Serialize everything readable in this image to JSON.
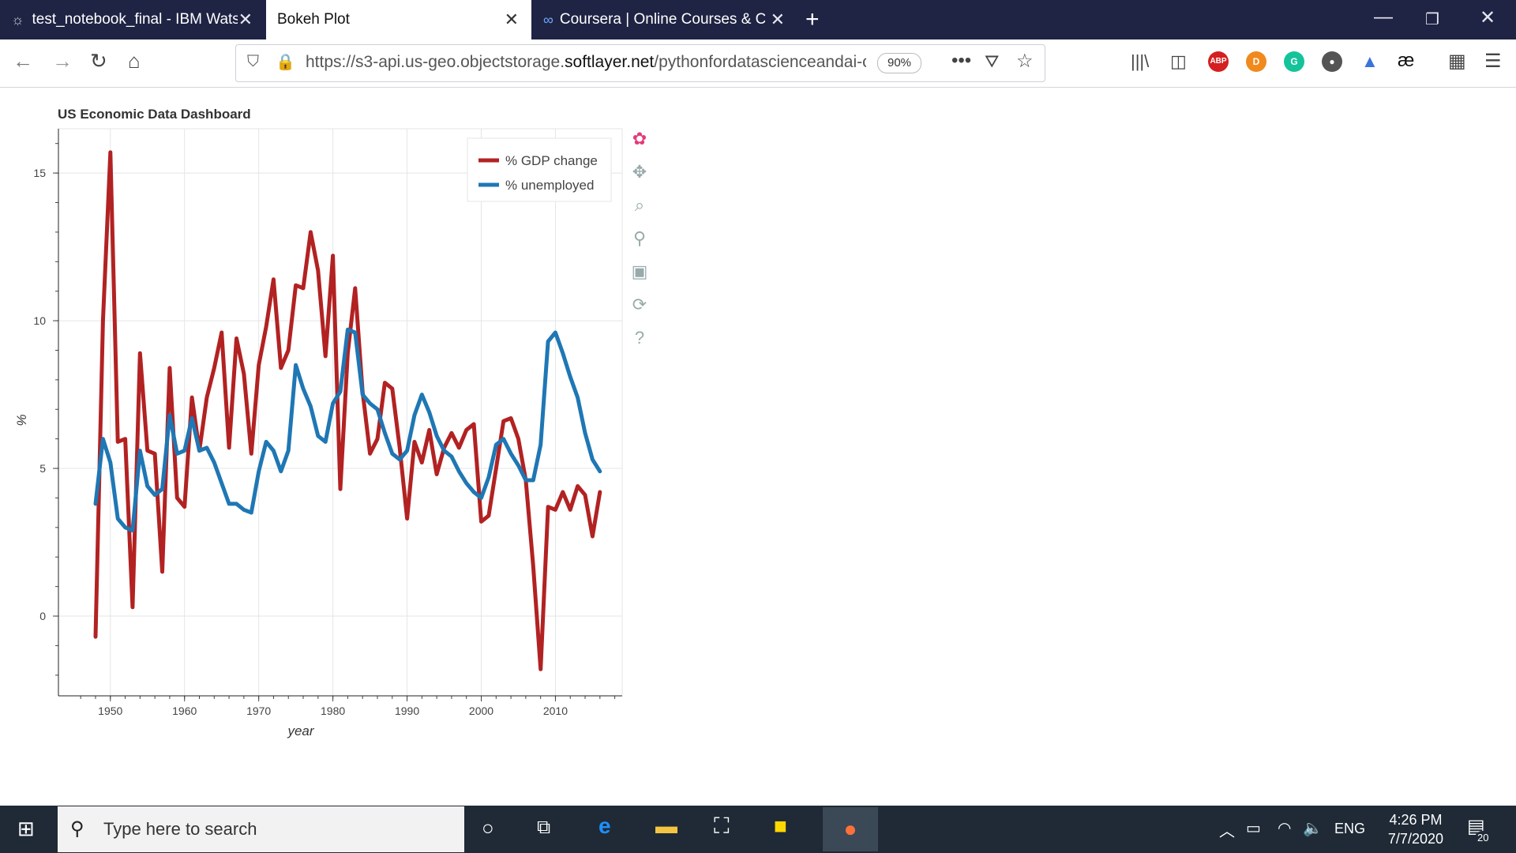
{
  "browser": {
    "tabs": [
      {
        "label": "test_notebook_final - IBM Wats",
        "active": false
      },
      {
        "label": "Bokeh Plot",
        "active": true
      },
      {
        "label": "Coursera | Online Courses & Cr",
        "active": false
      }
    ],
    "url_prefix": "https://s3-api.us-geo.objectstorage.",
    "url_domain": "softlayer.net",
    "url_suffix": "/pythonfordatascienceandai-c",
    "zoom": "90%",
    "ext_abp": "ABP",
    "ext_d": "D",
    "ext_g": "G",
    "ext_ae": "æ"
  },
  "chart_data": {
    "type": "line",
    "title": "US Economic Data Dashboard",
    "xlabel": "year",
    "ylabel": "%",
    "xlim": [
      1943,
      2019
    ],
    "ylim": [
      -2.7,
      16.5
    ],
    "x_ticks": [
      1950,
      1960,
      1970,
      1980,
      1990,
      2000,
      2010
    ],
    "y_ticks": [
      0,
      5,
      10,
      15
    ],
    "grid": true,
    "legend_position": "top-right",
    "x": [
      1948,
      1949,
      1950,
      1951,
      1952,
      1953,
      1954,
      1955,
      1956,
      1957,
      1958,
      1959,
      1960,
      1961,
      1962,
      1963,
      1964,
      1965,
      1966,
      1967,
      1968,
      1969,
      1970,
      1971,
      1972,
      1973,
      1974,
      1975,
      1976,
      1977,
      1978,
      1979,
      1980,
      1981,
      1982,
      1983,
      1984,
      1985,
      1986,
      1987,
      1988,
      1989,
      1990,
      1991,
      1992,
      1993,
      1994,
      1995,
      1996,
      1997,
      1998,
      1999,
      2000,
      2001,
      2002,
      2003,
      2004,
      2005,
      2006,
      2007,
      2008,
      2009,
      2010,
      2011,
      2012,
      2013,
      2014,
      2015,
      2016
    ],
    "series": [
      {
        "name": "% GDP change",
        "color": "#b22222",
        "values": [
          -0.7,
          10.0,
          15.7,
          5.9,
          6.0,
          0.3,
          8.9,
          5.6,
          5.5,
          1.5,
          8.4,
          4.0,
          3.7,
          7.4,
          5.6,
          7.4,
          8.4,
          9.6,
          5.7,
          9.4,
          8.2,
          5.5,
          8.5,
          9.8,
          11.4,
          8.4,
          9.0,
          11.2,
          11.1,
          13.0,
          11.7,
          8.8,
          12.2,
          4.3,
          8.9,
          11.1,
          7.6,
          5.5,
          6.0,
          7.9,
          7.7,
          5.7,
          3.3,
          5.9,
          5.2,
          6.3,
          4.8,
          5.7,
          6.2,
          5.7,
          6.3,
          6.5,
          3.2,
          3.4,
          5.0,
          6.6,
          6.7,
          6.0,
          4.6,
          1.7,
          -1.8,
          3.7,
          3.6,
          4.2,
          3.6,
          4.4,
          4.1,
          2.7,
          4.2
        ]
      },
      {
        "name": "% unemployed",
        "color": "#1f77b4",
        "values": [
          3.8,
          6.0,
          5.2,
          3.3,
          3.0,
          2.9,
          5.6,
          4.4,
          4.1,
          4.3,
          6.8,
          5.5,
          5.6,
          6.7,
          5.6,
          5.7,
          5.2,
          4.5,
          3.8,
          3.8,
          3.6,
          3.5,
          4.9,
          5.9,
          5.6,
          4.9,
          5.6,
          8.5,
          7.7,
          7.1,
          6.1,
          5.9,
          7.2,
          7.6,
          9.7,
          9.6,
          7.5,
          7.2,
          7.0,
          6.2,
          5.5,
          5.3,
          5.6,
          6.8,
          7.5,
          6.9,
          6.1,
          5.6,
          5.4,
          4.9,
          4.5,
          4.2,
          4.0,
          4.7,
          5.8,
          6.0,
          5.5,
          5.1,
          4.6,
          4.6,
          5.8,
          9.3,
          9.6,
          8.9,
          8.1,
          7.4,
          6.2,
          5.3,
          4.9
        ]
      }
    ]
  },
  "bokeh_tools": [
    {
      "name": "bokeh-logo-icon",
      "glyph": "✿"
    },
    {
      "name": "pan-tool-icon",
      "glyph": "✥"
    },
    {
      "name": "box-zoom-tool-icon",
      "glyph": "⌕"
    },
    {
      "name": "wheel-zoom-tool-icon",
      "glyph": "⚲"
    },
    {
      "name": "save-tool-icon",
      "glyph": "▣"
    },
    {
      "name": "reset-tool-icon",
      "glyph": "⟳"
    },
    {
      "name": "help-tool-icon",
      "glyph": "?"
    }
  ],
  "taskbar": {
    "search_placeholder": "Type here to search",
    "lang": "ENG",
    "time": "4:26 PM",
    "date": "7/7/2020",
    "notif_count": "20"
  }
}
